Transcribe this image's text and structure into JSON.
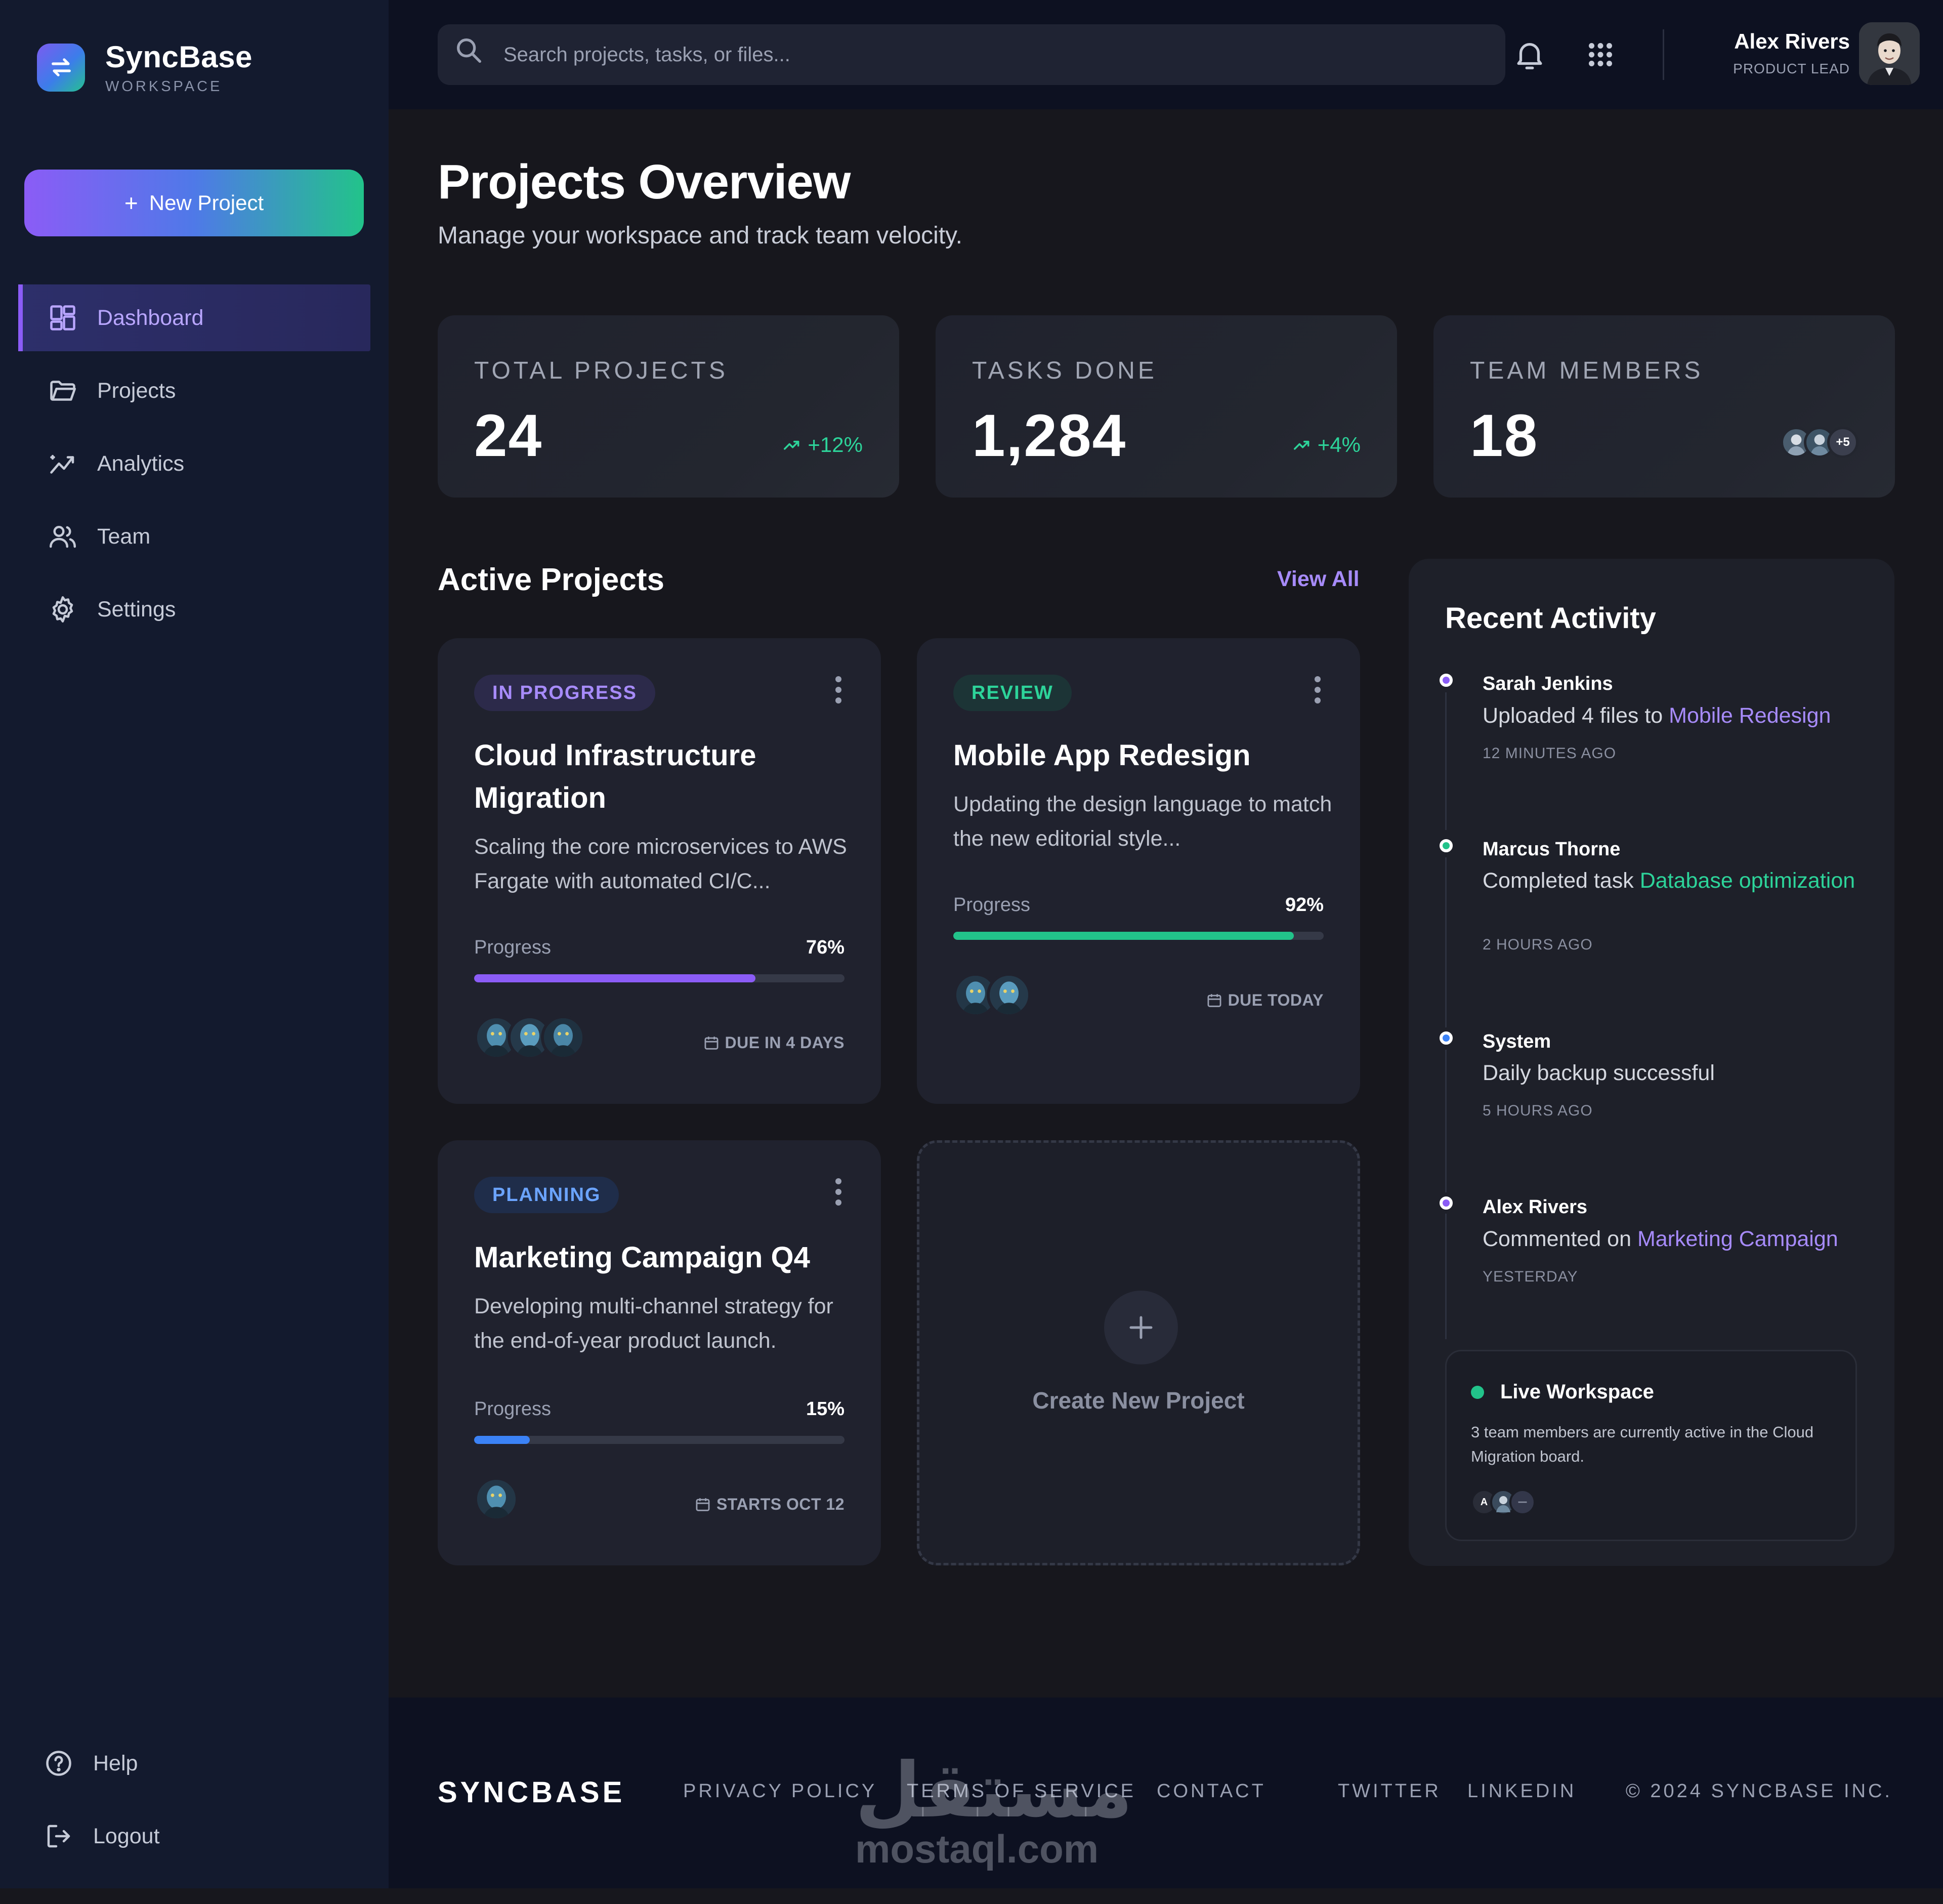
{
  "app": {
    "name": "SyncBase",
    "subtitle": "WORKSPACE",
    "new_project_label": "New Project"
  },
  "sidebar": {
    "items": [
      {
        "label": "Dashboard",
        "icon": "dashboard-icon",
        "active": true
      },
      {
        "label": "Projects",
        "icon": "folder-icon"
      },
      {
        "label": "Analytics",
        "icon": "analytics-icon"
      },
      {
        "label": "Team",
        "icon": "team-icon"
      },
      {
        "label": "Settings",
        "icon": "gear-icon"
      }
    ],
    "bottom": [
      {
        "label": "Help",
        "icon": "help-icon"
      },
      {
        "label": "Logout",
        "icon": "logout-icon"
      }
    ]
  },
  "topbar": {
    "search_placeholder": "Search projects, tasks, or files...",
    "user_name": "Alex Rivers",
    "user_role": "PRODUCT LEAD"
  },
  "page": {
    "title": "Projects Overview",
    "subtitle": "Manage your workspace and track team velocity."
  },
  "stats": [
    {
      "label": "TOTAL PROJECTS",
      "value": "24",
      "trend": "+12%"
    },
    {
      "label": "TASKS DONE",
      "value": "1,284",
      "trend": "+4%"
    },
    {
      "label": "TEAM MEMBERS",
      "value": "18",
      "more": "+5"
    }
  ],
  "active_projects": {
    "title": "Active Projects",
    "view_all": "View All",
    "progress_label": "Progress",
    "cards": [
      {
        "status": "IN PROGRESS",
        "title": "Cloud Infrastructure Migration",
        "description": "Scaling the core microservices to AWS Fargate with automated CI/C...",
        "progress": 76,
        "progress_text": "76%",
        "due": "DUE IN 4 DAYS",
        "color": "#8b5cf6"
      },
      {
        "status": "REVIEW",
        "title": "Mobile App Redesign",
        "description": "Updating the design language to match the new editorial style...",
        "progress": 92,
        "progress_text": "92%",
        "due": "DUE TODAY",
        "color": "#22c38a"
      },
      {
        "status": "PLANNING",
        "title": "Marketing Campaign Q4",
        "description": "Developing multi-channel strategy for the end-of-year product launch.",
        "progress": 15,
        "progress_text": "15%",
        "due": "STARTS OCT 12",
        "color": "#3b82f6"
      }
    ],
    "create_label": "Create New Project"
  },
  "activity": {
    "title": "Recent Activity",
    "items": [
      {
        "name": "Sarah Jenkins",
        "text": "Uploaded 4 files to ",
        "link": "Mobile Redesign",
        "time": "12 MINUTES AGO",
        "color": "#8b5cf6"
      },
      {
        "name": "Marcus Thorne",
        "text": "Completed task ",
        "link": "Database optimization",
        "time": "2 HOURS AGO",
        "color": "#22c38a"
      },
      {
        "name": "System",
        "text": "Daily backup successful",
        "link": "",
        "time": "5 HOURS AGO",
        "color": "#3b82f6"
      },
      {
        "name": "Alex Rivers",
        "text": "Commented on ",
        "link": "Marketing Campaign",
        "time": "YESTERDAY",
        "color": "#8b5cf6"
      }
    ],
    "live": {
      "title": "Live Workspace",
      "description": "3 team members are currently active in the Cloud Migration board."
    }
  },
  "footer": {
    "brand": "SYNCBASE",
    "links": [
      "PRIVACY POLICY",
      "TERMS OF SERVICE",
      "CONTACT",
      "TWITTER",
      "LINKEDIN"
    ],
    "copyright": "© 2024 SYNCBASE INC."
  },
  "watermark": {
    "arabic": "مستقل",
    "latin": "mostaql.com"
  }
}
